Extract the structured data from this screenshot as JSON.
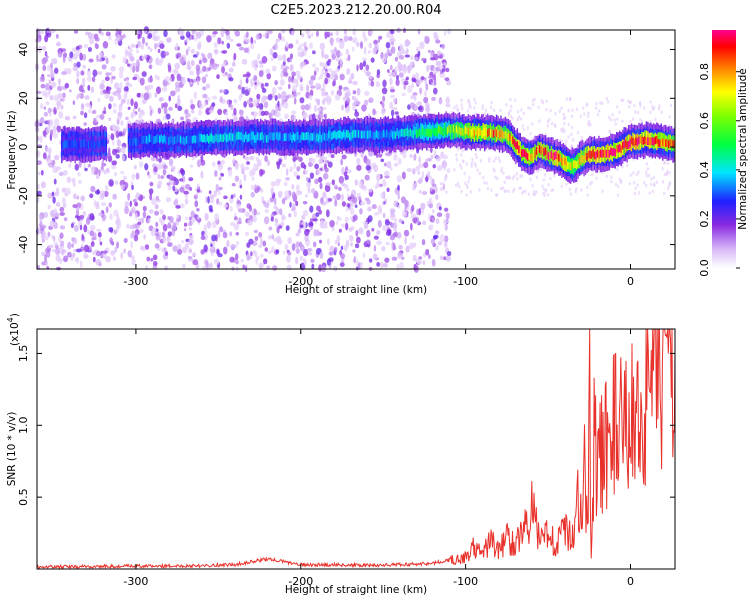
{
  "title": "C2E5.2023.212.20.00.R04",
  "colors": {
    "snr_line": "#e8312a",
    "plot_bg": "#ffffff",
    "axis": "#000000"
  },
  "chart_data": [
    {
      "type": "heatmap",
      "xlabel": "Height of straight line (km)",
      "ylabel": "Frequency (Hz)",
      "xlim": [
        -360,
        27
      ],
      "ylim": [
        -50,
        48
      ],
      "xticks": [
        "-300",
        "-200",
        "-100",
        "0"
      ],
      "xtick_values": [
        -300,
        -200,
        -100,
        0
      ],
      "yticks": [
        "-40",
        "-20",
        "0",
        "20",
        "40"
      ],
      "ytick_values": [
        -40,
        -20,
        0,
        20,
        40
      ],
      "colorbar": {
        "label": "Normalized spectral amplitude",
        "range": [
          0,
          0.97
        ],
        "ticks": [
          "0.0",
          "0.2",
          "0.4",
          "0.6",
          "0.8"
        ],
        "tick_values": [
          0,
          0.2,
          0.4,
          0.6,
          0.8
        ],
        "colormap": "rainbow (white-violet-blue-cyan-green-yellow-red-magenta)"
      },
      "ridge": {
        "x": [
          -345,
          -330,
          -310,
          -290,
          -270,
          -250,
          -230,
          -210,
          -190,
          -170,
          -150,
          -130,
          -110,
          -95,
          -85,
          -75,
          -70,
          -65,
          -60,
          -55,
          -50,
          -45,
          -40,
          -35,
          -30,
          -25,
          -20,
          -10,
          0,
          10,
          20,
          27
        ],
        "y": [
          1,
          1,
          2,
          3,
          3,
          4,
          4,
          4,
          4,
          5,
          5,
          6,
          7,
          6,
          6,
          5,
          1,
          -3,
          -4,
          -1,
          -3,
          -4,
          -6,
          -8,
          -5,
          -3,
          -3,
          -2,
          2,
          3,
          2,
          1
        ],
        "peak_amplitude": [
          0.3,
          0.3,
          0.3,
          0.35,
          0.35,
          0.4,
          0.4,
          0.35,
          0.4,
          0.4,
          0.35,
          0.45,
          0.6,
          0.8,
          0.85,
          0.75,
          0.85,
          0.9,
          0.8,
          0.85,
          0.9,
          0.95,
          0.85,
          0.7,
          0.8,
          0.9,
          0.95,
          0.95,
          0.95,
          0.9,
          0.85,
          0.8
        ]
      }
    },
    {
      "type": "line",
      "xlabel": "Height of straight line (km)",
      "ylabel": "SNR (10 * v/v)",
      "y_multiplier": "(x10",
      "y_multiplier_exp": "4",
      "y_multiplier_close": ")",
      "xlim": [
        -360,
        27
      ],
      "ylim": [
        0,
        1.67
      ],
      "xticks": [
        "-300",
        "-200",
        "-100",
        "0"
      ],
      "xtick_values": [
        -300,
        -200,
        -100,
        0
      ],
      "yticks": [
        "0.5",
        "1.0",
        "1.5"
      ],
      "ytick_values": [
        0.5,
        1.0,
        1.5
      ],
      "series": [
        {
          "x": [
            -360,
            -340,
            -320,
            -300,
            -280,
            -260,
            -240,
            -220,
            -200,
            -180,
            -160,
            -140,
            -120,
            -110,
            -100,
            -95,
            -90,
            -85,
            -80,
            -75,
            -70,
            -65,
            -60,
            -55,
            -50,
            -45,
            -40,
            -35,
            -32,
            -30,
            -28,
            -26,
            -25,
            -24,
            -22,
            -20,
            -15,
            -10,
            -5,
            0,
            5,
            10,
            15,
            20,
            25,
            27
          ],
          "y": [
            0.015,
            0.015,
            0.018,
            0.02,
            0.02,
            0.025,
            0.03,
            0.07,
            0.03,
            0.03,
            0.025,
            0.03,
            0.04,
            0.06,
            0.08,
            0.15,
            0.1,
            0.2,
            0.12,
            0.22,
            0.18,
            0.25,
            0.42,
            0.18,
            0.3,
            0.15,
            0.28,
            0.2,
            0.55,
            0.45,
            0.7,
            0.2,
            1.66,
            0.1,
            0.9,
            0.7,
            0.9,
            1.0,
            0.95,
            1.05,
            1.1,
            1.2,
            1.3,
            1.4,
            1.55,
            1.45
          ]
        }
      ]
    }
  ]
}
